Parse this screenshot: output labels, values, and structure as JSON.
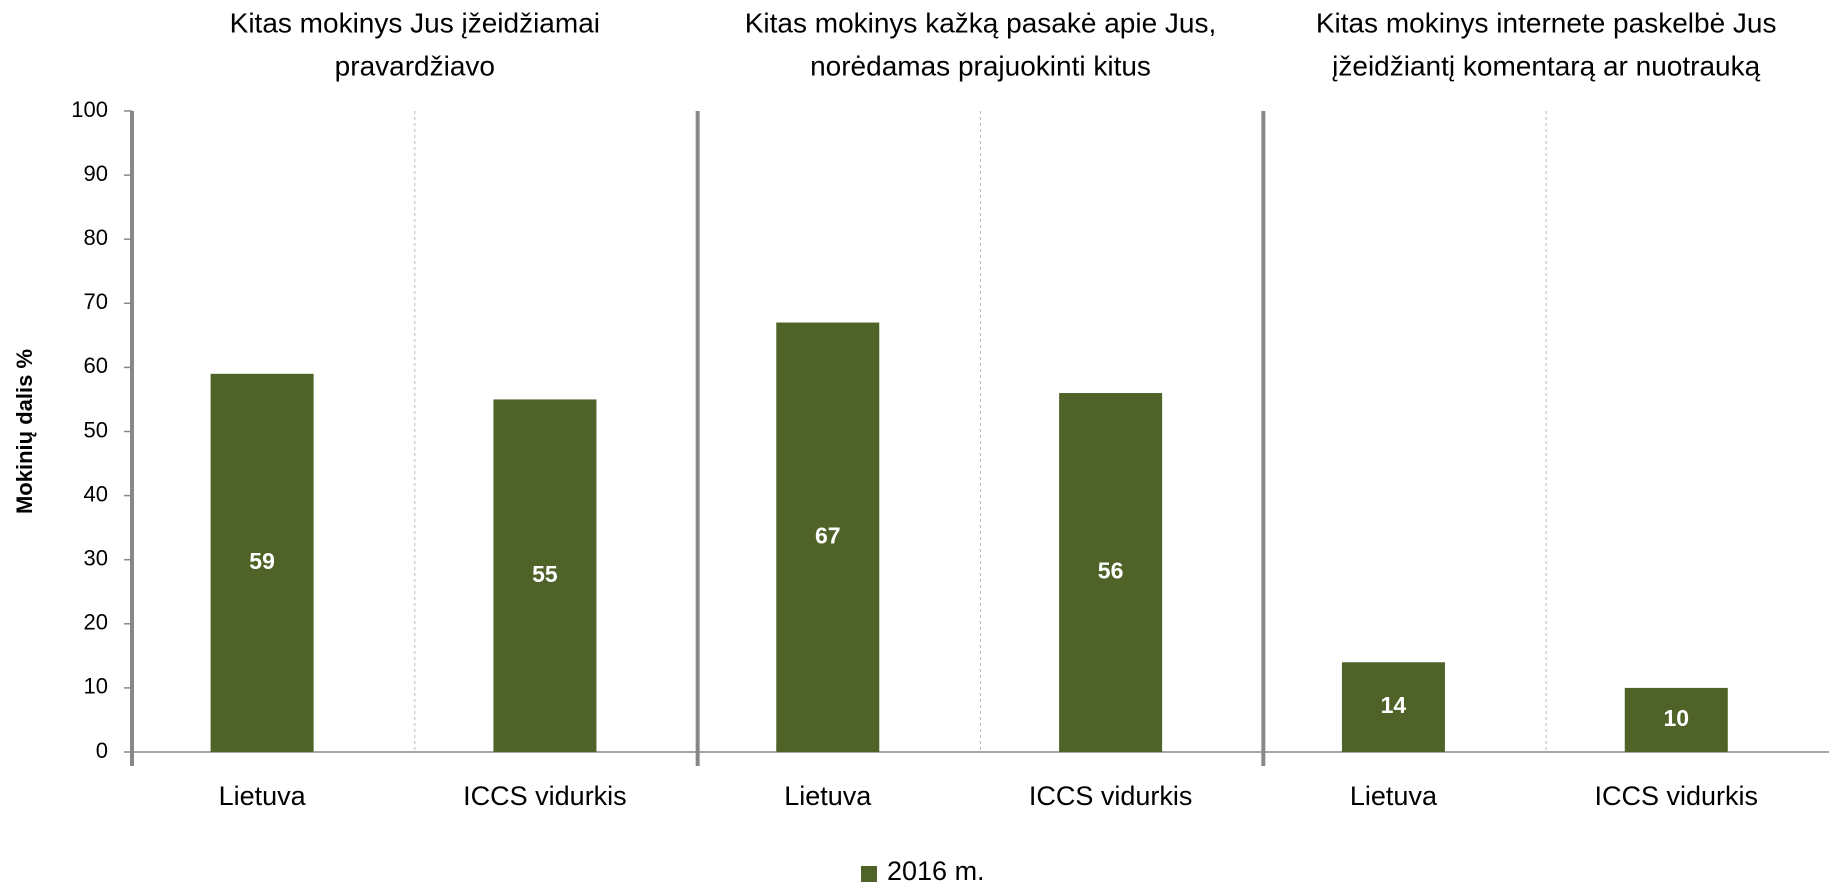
{
  "chart_data": {
    "type": "bar",
    "group_titles": [
      [
        "Kitas mokinys Jus įžeidžiamai",
        "pravardžiavo"
      ],
      [
        "Kitas mokinys kažką pasakė apie Jus,",
        "norėdamas prajuokinti kitus"
      ],
      [
        "Kitas mokinys internete paskelbė Jus",
        "įžeidžiantį komentarą ar nuotrauką"
      ]
    ],
    "categories": [
      "Lietuva",
      "ICCS vidurkis",
      "Lietuva",
      "ICCS vidurkis",
      "Lietuva",
      "ICCS vidurkis"
    ],
    "ylabel": "Mokinių dalis %",
    "series": [
      {
        "name": "2016 m.",
        "color": "#4f6228",
        "values": [
          59,
          55,
          67,
          56,
          14,
          10
        ]
      }
    ],
    "ylim": [
      0,
      100
    ],
    "yticks": [
      0,
      10,
      20,
      30,
      40,
      50,
      60,
      70,
      80,
      90,
      100
    ],
    "legend": "bottom"
  }
}
